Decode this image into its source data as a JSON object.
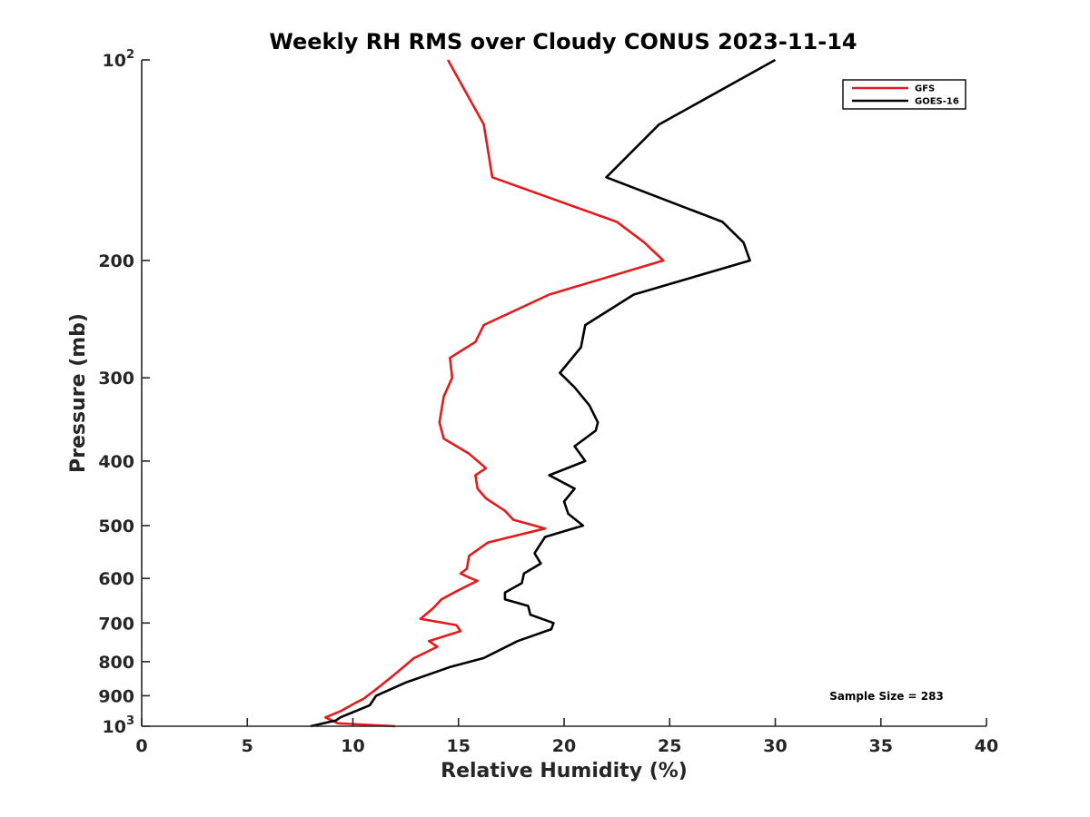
{
  "chart_data": {
    "type": "line",
    "title": "Weekly RH RMS over Cloudy CONUS 2023-11-14",
    "xlabel": "Relative Humidity (%)",
    "ylabel": "Pressure (mb)",
    "xlim": [
      0,
      40
    ],
    "ylim": [
      100,
      1000
    ],
    "y_scale": "log",
    "y_reversed": true,
    "grid": false,
    "legend_position": "top-right",
    "x_ticks": [
      {
        "value": 0,
        "label": "0"
      },
      {
        "value": 5,
        "label": "5"
      },
      {
        "value": 10,
        "label": "10"
      },
      {
        "value": 15,
        "label": "15"
      },
      {
        "value": 20,
        "label": "20"
      },
      {
        "value": 25,
        "label": "25"
      },
      {
        "value": 30,
        "label": "30"
      },
      {
        "value": 35,
        "label": "35"
      },
      {
        "value": 40,
        "label": "40"
      }
    ],
    "y_ticks": [
      {
        "value": 100,
        "label": "10",
        "sup": "2"
      },
      {
        "value": 200,
        "label": "200",
        "sup": ""
      },
      {
        "value": 300,
        "label": "300",
        "sup": ""
      },
      {
        "value": 400,
        "label": "400",
        "sup": ""
      },
      {
        "value": 500,
        "label": "500",
        "sup": ""
      },
      {
        "value": 600,
        "label": "600",
        "sup": ""
      },
      {
        "value": 700,
        "label": "700",
        "sup": ""
      },
      {
        "value": 800,
        "label": "800",
        "sup": ""
      },
      {
        "value": 900,
        "label": "900",
        "sup": ""
      },
      {
        "value": 1000,
        "label": "10",
        "sup": "3"
      }
    ],
    "series": [
      {
        "name": "GFS",
        "color": "#e41a1c",
        "points": [
          [
            14.5,
            100
          ],
          [
            16.2,
            125
          ],
          [
            16.6,
            150
          ],
          [
            22.5,
            175
          ],
          [
            23.8,
            188
          ],
          [
            24.7,
            200
          ],
          [
            19.3,
            225
          ],
          [
            16.2,
            250
          ],
          [
            15.8,
            265
          ],
          [
            14.6,
            280
          ],
          [
            14.7,
            300
          ],
          [
            14.3,
            320
          ],
          [
            14.1,
            350
          ],
          [
            14.3,
            370
          ],
          [
            15.5,
            390
          ],
          [
            16.3,
            410
          ],
          [
            15.8,
            420
          ],
          [
            15.9,
            440
          ],
          [
            16.3,
            455
          ],
          [
            17.2,
            475
          ],
          [
            17.6,
            490
          ],
          [
            19.1,
            505
          ],
          [
            16.4,
            530
          ],
          [
            15.5,
            555
          ],
          [
            15.4,
            580
          ],
          [
            15.1,
            590
          ],
          [
            15.6,
            600
          ],
          [
            15.9,
            605
          ],
          [
            15.0,
            625
          ],
          [
            14.2,
            645
          ],
          [
            13.8,
            665
          ],
          [
            13.2,
            690
          ],
          [
            14.9,
            705
          ],
          [
            15.1,
            720
          ],
          [
            13.6,
            745
          ],
          [
            14.0,
            760
          ],
          [
            12.9,
            790
          ],
          [
            12.5,
            810
          ],
          [
            11.9,
            840
          ],
          [
            11.1,
            880
          ],
          [
            10.5,
            910
          ],
          [
            10.2,
            920
          ],
          [
            9.4,
            950
          ],
          [
            8.7,
            970
          ],
          [
            9.3,
            990
          ],
          [
            12.0,
            1000
          ]
        ]
      },
      {
        "name": "GOES-16",
        "color": "#000000",
        "points": [
          [
            30.0,
            100
          ],
          [
            24.5,
            125
          ],
          [
            22.0,
            150
          ],
          [
            27.5,
            175
          ],
          [
            28.5,
            188
          ],
          [
            28.8,
            200
          ],
          [
            23.3,
            225
          ],
          [
            21.0,
            250
          ],
          [
            20.8,
            270
          ],
          [
            19.8,
            295
          ],
          [
            20.5,
            310
          ],
          [
            21.2,
            330
          ],
          [
            21.6,
            350
          ],
          [
            21.5,
            360
          ],
          [
            20.5,
            380
          ],
          [
            21.0,
            400
          ],
          [
            19.3,
            420
          ],
          [
            20.5,
            440
          ],
          [
            20.0,
            460
          ],
          [
            20.2,
            480
          ],
          [
            20.9,
            500
          ],
          [
            19.1,
            520
          ],
          [
            18.6,
            550
          ],
          [
            18.9,
            570
          ],
          [
            18.1,
            590
          ],
          [
            18.0,
            610
          ],
          [
            17.2,
            630
          ],
          [
            17.2,
            645
          ],
          [
            18.3,
            660
          ],
          [
            18.4,
            680
          ],
          [
            19.5,
            700
          ],
          [
            19.4,
            715
          ],
          [
            17.8,
            745
          ],
          [
            16.9,
            770
          ],
          [
            16.2,
            790
          ],
          [
            14.6,
            815
          ],
          [
            12.5,
            860
          ],
          [
            11.1,
            900
          ],
          [
            10.8,
            930
          ],
          [
            9.4,
            970
          ],
          [
            9.2,
            980
          ],
          [
            8.0,
            1000
          ]
        ]
      }
    ],
    "annotations": [
      {
        "text": "Sample Size = 283",
        "x": 36.0,
        "y": 900
      }
    ]
  }
}
